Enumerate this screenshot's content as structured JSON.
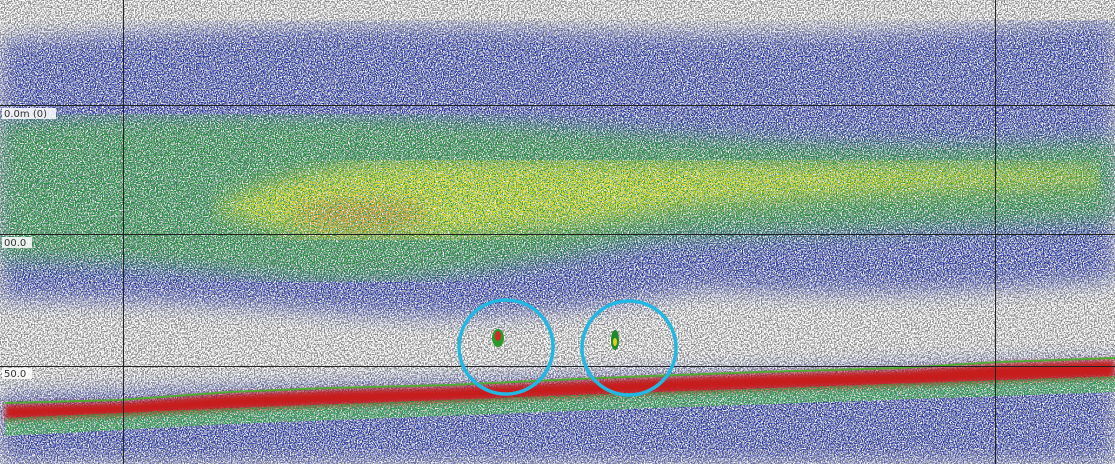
{
  "scale_labels": [
    "0.0m (0)",
    "00.0",
    "50.0"
  ]
}
